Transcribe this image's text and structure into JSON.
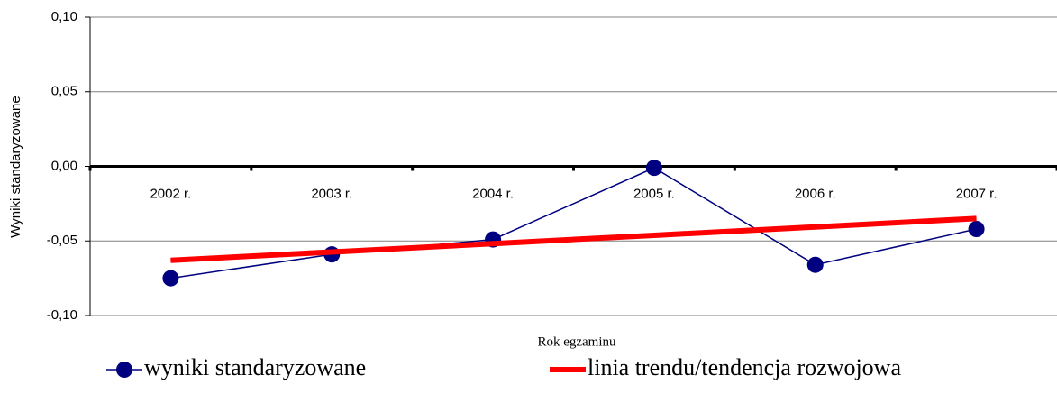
{
  "chart_data": {
    "type": "line",
    "y_label": "Wyniki standaryzowane",
    "x_label": "Rok egzaminu",
    "categories": [
      "2002 r.",
      "2003 r.",
      "2004 r.",
      "2005 r.",
      "2006 r.",
      "2007 r."
    ],
    "series": [
      {
        "name": "wyniki standaryzowane",
        "color": "#000080",
        "markers": true,
        "values": [
          -0.075,
          -0.059,
          -0.049,
          -0.001,
          -0.066,
          -0.042
        ]
      },
      {
        "name": "linia trendu/tendencja rozwojowa",
        "color": "#ff0000",
        "markers": false,
        "values": [
          -0.063,
          -0.0574,
          -0.0518,
          -0.0462,
          -0.0406,
          -0.035
        ]
      }
    ],
    "ylim": [
      -0.1,
      0.1
    ],
    "yticks": [
      {
        "value": -0.1,
        "label": "-0,10"
      },
      {
        "value": -0.05,
        "label": "-0,05"
      },
      {
        "value": 0,
        "label": "0,00"
      },
      {
        "value": 0.05,
        "label": "0,05"
      },
      {
        "value": 0.1,
        "label": "0,10"
      }
    ],
    "grid": true
  }
}
